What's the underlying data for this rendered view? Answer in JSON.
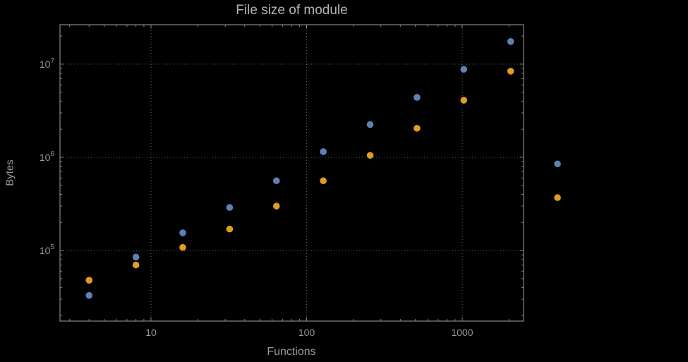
{
  "chart_data": {
    "type": "scatter",
    "title": "File size of module",
    "xlabel": "Functions",
    "ylabel": "Bytes",
    "x_scale": "log",
    "y_scale": "log",
    "grid": "dotted",
    "legend": "none",
    "x": [
      4,
      8,
      16,
      32,
      64,
      128,
      256,
      512,
      1024,
      2048,
      4096
    ],
    "series": [
      {
        "name": "blue",
        "color": "#5E81B5",
        "values": [
          33000,
          85000,
          155000,
          290000,
          560000,
          1150000,
          2250000,
          4400000,
          8800000,
          17500000,
          850000
        ]
      },
      {
        "name": "orange",
        "color": "#E19C24",
        "values": [
          48000,
          70000,
          108000,
          170000,
          300000,
          560000,
          1050000,
          2050000,
          4100000,
          8400000,
          370000
        ]
      }
    ],
    "x_ticks": [
      10,
      100,
      1000
    ],
    "x_tick_labels": [
      "10",
      "100",
      "1000"
    ],
    "y_ticks": [
      100000,
      1000000,
      10000000
    ],
    "y_tick_labels": [
      {
        "base": "10",
        "exp": "5"
      },
      {
        "base": "10",
        "exp": "6"
      },
      {
        "base": "10",
        "exp": "7"
      }
    ],
    "xlim": [
      2.6,
      2480
    ],
    "ylim": [
      17500,
      26500000
    ],
    "marker_radius": 4.8
  },
  "colors": {
    "background": "#000000",
    "frame": "#848484",
    "grid": "#686868",
    "tick_label": "#989898",
    "axis_label": "#9a9a9a",
    "title": "#b3b3b3",
    "series_blue": "#5E81B5",
    "series_orange": "#E19C24"
  }
}
